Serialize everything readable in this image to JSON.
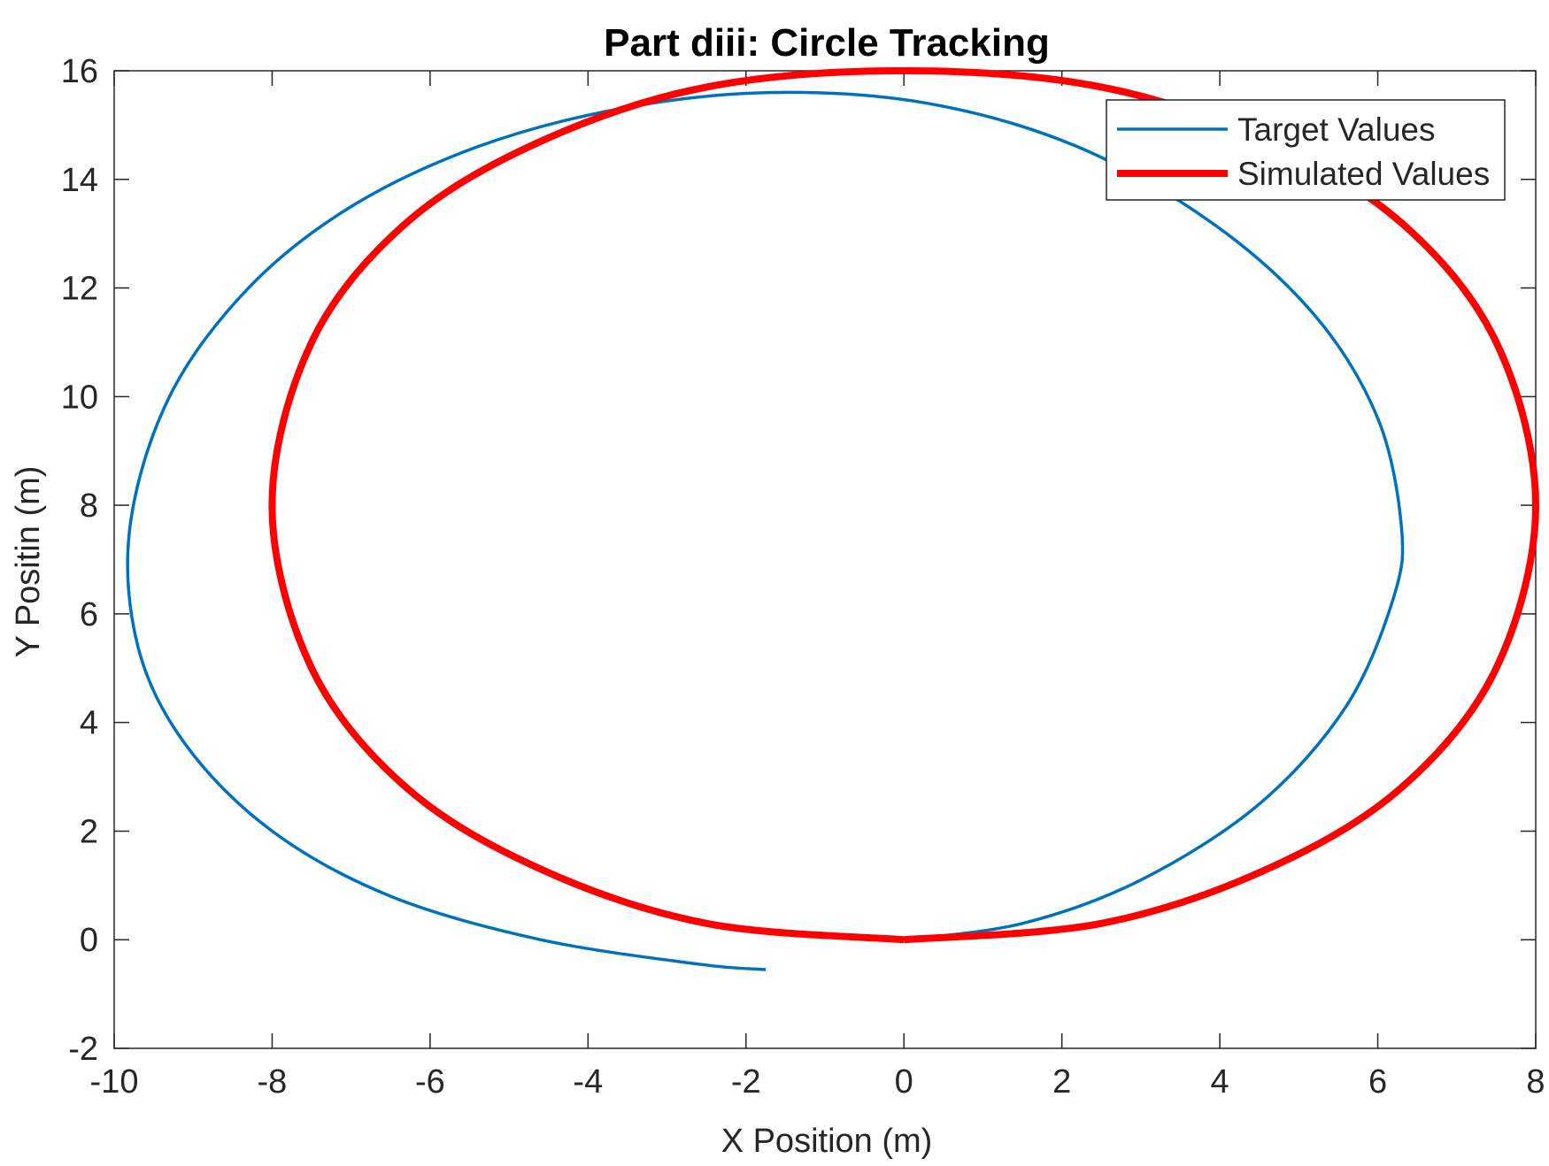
{
  "chart_data": {
    "type": "line",
    "title": "Part diii: Circle Tracking",
    "xlabel": "X Position (m)",
    "ylabel": "Y Positin (m)",
    "xlim": [
      -10,
      8
    ],
    "ylim": [
      -2,
      16
    ],
    "xticks": [
      -10,
      -8,
      -6,
      -4,
      -2,
      0,
      2,
      4,
      6,
      8
    ],
    "yticks": [
      -2,
      0,
      2,
      4,
      6,
      8,
      10,
      12,
      14,
      16
    ],
    "grid": false,
    "legend_position": "top-right",
    "series": [
      {
        "name": "Target Values",
        "color": "#0072BD",
        "x": [
          0,
          1.5,
          3,
          4.5,
          5.6,
          6.2,
          6.3,
          6.0,
          5.2,
          3.9,
          2.2,
          0.3,
          -1.7,
          -3.6,
          -5.4,
          -7.0,
          -8.3,
          -9.3,
          -9.8,
          -9.7,
          -9.1,
          -8.0,
          -6.5,
          -4.6,
          -2.6,
          -1.75
        ],
        "y": [
          0,
          0.3,
          1.1,
          2.5,
          4.3,
          6.3,
          7.6,
          9.6,
          11.5,
          13.2,
          14.6,
          15.4,
          15.6,
          15.3,
          14.6,
          13.5,
          12.0,
          10.0,
          7.6,
          5.4,
          3.6,
          2.0,
          0.8,
          0.0,
          -0.45,
          -0.55
        ]
      },
      {
        "name": "Simulated Values",
        "color": "#FF0000",
        "x": [
          0,
          2.5,
          4.6,
          6.3,
          7.5,
          8.0,
          7.5,
          6.3,
          4.6,
          2.5,
          0,
          -2.5,
          -4.6,
          -6.3,
          -7.5,
          -8.0,
          -7.5,
          -6.3,
          -4.6,
          -2.5,
          0
        ],
        "y": [
          0,
          0.3,
          1.3,
          2.8,
          5.0,
          8.0,
          11.0,
          13.2,
          14.7,
          15.7,
          16.0,
          15.7,
          14.7,
          13.2,
          11.0,
          8.0,
          5.0,
          2.8,
          1.3,
          0.3,
          0
        ]
      }
    ]
  }
}
